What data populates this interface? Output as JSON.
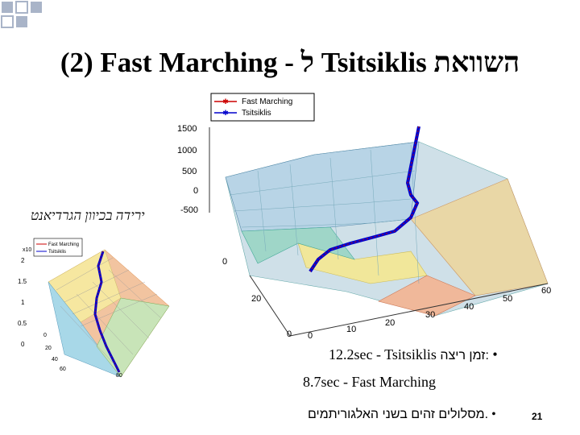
{
  "title": {
    "ltr_part": "(2) Fast Marching -",
    "hebrew_l": "ל",
    "name": "Tsitsiklis",
    "hebrew_word": "השוואת"
  },
  "main_plot": {
    "legend": [
      "Fast Marching",
      "Tsitsiklis"
    ],
    "z_ticks": [
      "1500",
      "1000",
      "500",
      "0",
      "-500"
    ],
    "left_tick": "0",
    "x_ticks": [
      "0",
      "10",
      "20",
      "30",
      "40",
      "50",
      "60"
    ],
    "y_ticks": [
      "0",
      "20"
    ]
  },
  "small_plot": {
    "legend": [
      "Fast Marching",
      "Tsitsiklis"
    ],
    "exp_label": "x10",
    "z_ticks": [
      "2",
      "1.5",
      "1",
      "0.5",
      "0"
    ],
    "x_ticks": [
      "0",
      "20",
      "40",
      "60",
      "80"
    ]
  },
  "gradient_label": "ירידה בכיוון הגרדיאנט",
  "bullets": {
    "time_label": "זמן ריצה:",
    "time_tsitsiklis": "12.2sec  - Tsitsiklis",
    "time_fast_marching": "8.7sec  - Fast Marching",
    "same_paths": "מסלולים זהים בשני האלגוריתמים.",
    "bullet_char": "•"
  },
  "page_number": "21",
  "colors": {
    "fast_marching": "#cc0000",
    "tsitsiklis": "#0000cc",
    "corner_square": "#a9b4c8"
  }
}
